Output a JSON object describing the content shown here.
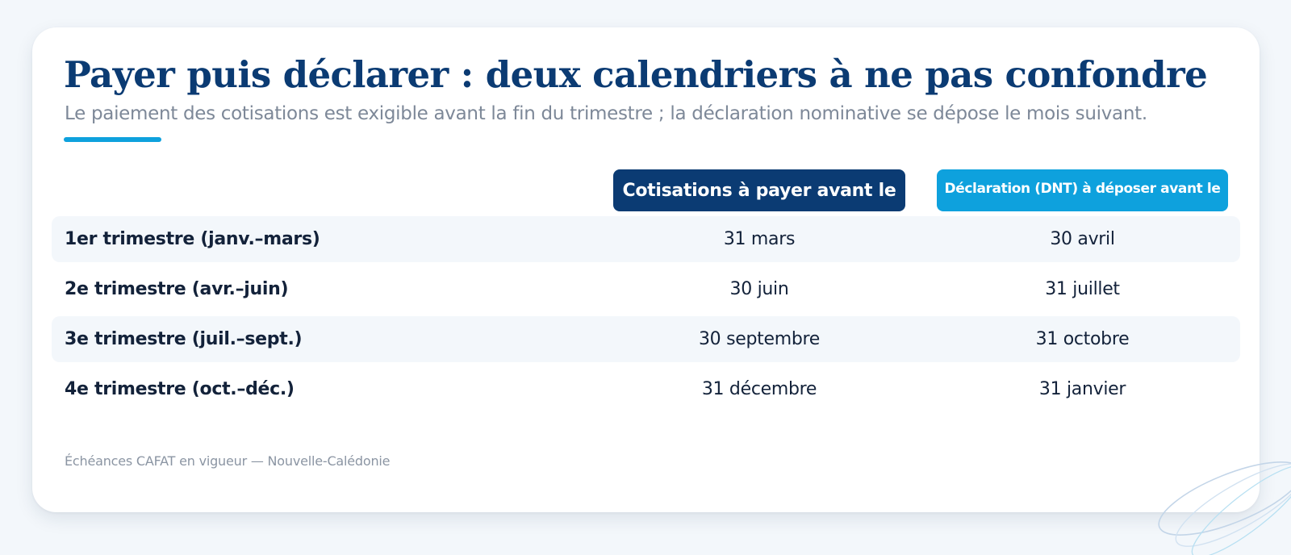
{
  "header": {
    "title": "Payer puis déclarer : deux calendriers à ne pas confondre",
    "subtitle": "Le paiement des cotisations est exigible avant la fin du trimestre ; la déclaration nominative se dépose le mois suivant."
  },
  "table": {
    "col_pay": "Cotisations à payer avant le",
    "col_dnt": "Déclaration (DNT) à déposer avant le",
    "rows": [
      {
        "label": "1er trimestre (janv.–mars)",
        "pay": "31 mars",
        "dnt": "30 avril"
      },
      {
        "label": "2e trimestre (avr.–juin)",
        "pay": "30 juin",
        "dnt": "31 juillet"
      },
      {
        "label": "3e trimestre (juil.–sept.)",
        "pay": "30 septembre",
        "dnt": "31 octobre"
      },
      {
        "label": "4e trimestre (oct.–déc.)",
        "pay": "31 décembre",
        "dnt": "31 janvier"
      }
    ]
  },
  "footnote": "Échéances CAFAT en vigueur — Nouvelle-Calédonie",
  "colors": {
    "navy": "#0b3b73",
    "cyan": "#0ea1dd",
    "row_alt": "#f3f7fb",
    "text": "#13223a",
    "muted": "#7d8898"
  }
}
